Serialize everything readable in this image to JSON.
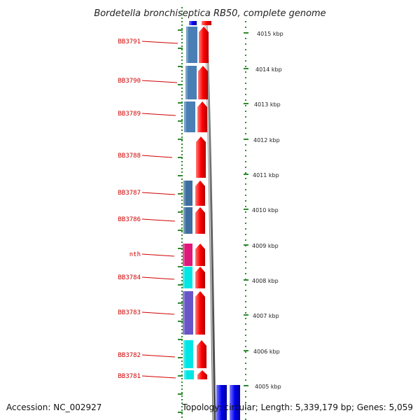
{
  "title": "Bordetella bronchiseptica RB50, complete genome",
  "genes": [
    {
      "label": "BB3791",
      "color": "#4a7fb5",
      "strand": "-"
    },
    {
      "label": "BB3790",
      "color": "#4a7fb5",
      "strand": "-"
    },
    {
      "label": "BB3789",
      "color": "#4a7fb5",
      "strand": "-"
    },
    {
      "label": "BB3788",
      "color": null,
      "strand": "+"
    },
    {
      "label": "BB3787",
      "color": "#3f6f9f",
      "strand": "-"
    },
    {
      "label": "BB3786",
      "color": "#3f6f9f",
      "strand": "-"
    },
    {
      "label": "nth",
      "color": "#e0187a",
      "strand": "-"
    },
    {
      "label": "BB3784",
      "color": "#00e5e5",
      "strand": "-"
    },
    {
      "label": "BB3783",
      "color": "#6a55c8",
      "strand": "-"
    },
    {
      "label": "BB3782",
      "color": "#00e5e5",
      "strand": "-"
    },
    {
      "label": "BB3781",
      "color": "#00e5e5",
      "strand": "-"
    }
  ],
  "kbp_ticks": [
    "4015 kbp",
    "4014 kbp",
    "4013 kbp",
    "4012 kbp",
    "4011 kbp",
    "4010 kbp",
    "4009 kbp",
    "4008 kbp",
    "4007 kbp",
    "4006 kbp",
    "4005 kbp"
  ],
  "colors": {
    "forward": "#ff0000",
    "reverse_track": "#0000ee",
    "label": "#d10000",
    "ruler": "#2e8b2e",
    "backbone": "#888888"
  },
  "footer": {
    "accession": "Accession: NC_002927",
    "topology": "Topology: circular; Length: 5,339,179 bp; Genes: 5,059"
  }
}
